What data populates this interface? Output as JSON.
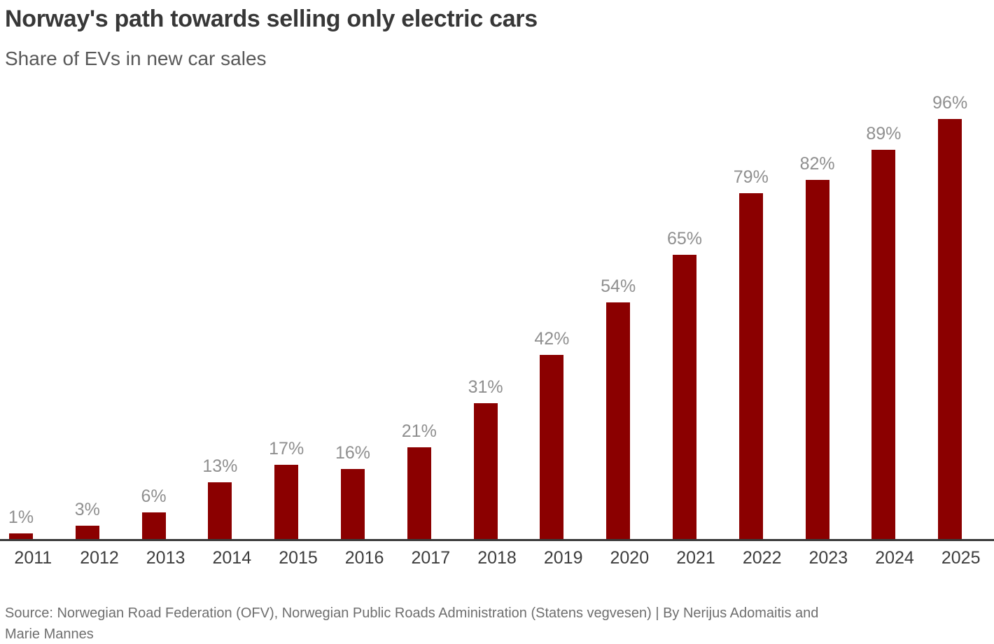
{
  "header": {
    "title": "Norway's path towards selling only electric cars",
    "subtitle": "Share of EVs in new car sales"
  },
  "chart_data": {
    "type": "bar",
    "title": "Norway's path towards selling only electric cars",
    "subtitle": "Share of EVs in new car sales",
    "categories": [
      "2011",
      "2012",
      "2013",
      "2014",
      "2015",
      "2016",
      "2017",
      "2018",
      "2019",
      "2020",
      "2021",
      "2022",
      "2023",
      "2024",
      "2025"
    ],
    "values": [
      1,
      3,
      6,
      13,
      17,
      16,
      21,
      31,
      42,
      54,
      65,
      79,
      82,
      89,
      96
    ],
    "value_labels": [
      "1%",
      "3%",
      "6%",
      "13%",
      "17%",
      "16%",
      "21%",
      "31%",
      "42%",
      "54%",
      "65%",
      "79%",
      "82%",
      "89%",
      "96%"
    ],
    "unit": "%",
    "xlabel": "",
    "ylabel": "Share of EVs in new car sales (%)",
    "ylim": [
      0,
      100
    ],
    "grid": false,
    "legend": false,
    "value_labels_position": "above-bars",
    "colors": {
      "bar": "#8b0000",
      "value_label": "#8f8f8f",
      "tick_label": "#3d3d3d",
      "axis_line": "#3a3a3a",
      "title": "#373737",
      "subtitle": "#585858",
      "source": "#6e6e6e"
    }
  },
  "footer": {
    "source_line1": "Source: Norwegian Road Federation (OFV), Norwegian Public Roads Administration (Statens vegvesen)  | By Nerijus Adomaitis and",
    "source_line2": "Marie Mannes"
  }
}
